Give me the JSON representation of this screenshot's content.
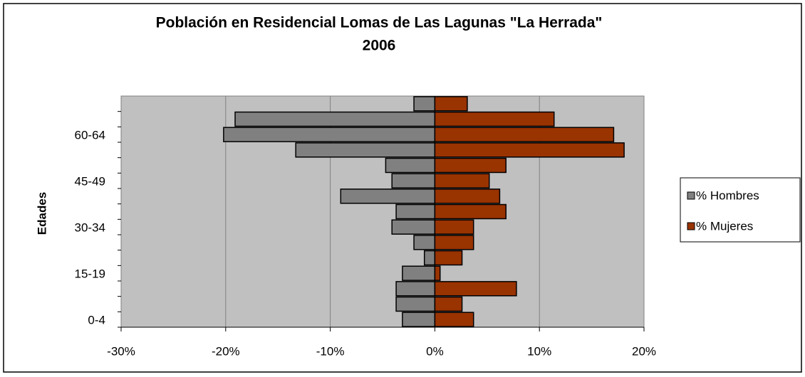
{
  "chart_data": {
    "type": "pyramid",
    "title": [
      "Población en Residencial Lomas de Las Lagunas \"La Herrada\"",
      "2006"
    ],
    "y_label": "Edades",
    "categories": [
      "0-4",
      null,
      null,
      "15-19",
      null,
      null,
      "30-34",
      null,
      null,
      "45-49",
      null,
      null,
      "60-64",
      null,
      null
    ],
    "series": [
      {
        "name": "% Hombres",
        "color": "#808080",
        "values": [
          -3.1,
          -3.7,
          -3.7,
          -3.1,
          -1.0,
          -2.0,
          -4.1,
          -3.7,
          -9.0,
          -4.1,
          -4.7,
          -13.3,
          -20.2,
          -19.1,
          -2.0
        ]
      },
      {
        "name": "% Mujeres",
        "color": "#993300",
        "values": [
          3.7,
          2.6,
          7.8,
          0.5,
          2.6,
          3.7,
          3.7,
          6.8,
          6.2,
          5.2,
          6.8,
          18.1,
          17.1,
          11.4,
          3.1
        ]
      }
    ],
    "xlim": [
      -30,
      20
    ],
    "xticks": [
      {
        "value": -30,
        "label": "-30%"
      },
      {
        "value": -20,
        "label": "-20%"
      },
      {
        "value": -10,
        "label": "-10%"
      },
      {
        "value": 0,
        "label": "0%"
      },
      {
        "value": 10,
        "label": "10%"
      },
      {
        "value": 20,
        "label": "20%"
      }
    ],
    "grid": true,
    "legend": "right"
  }
}
